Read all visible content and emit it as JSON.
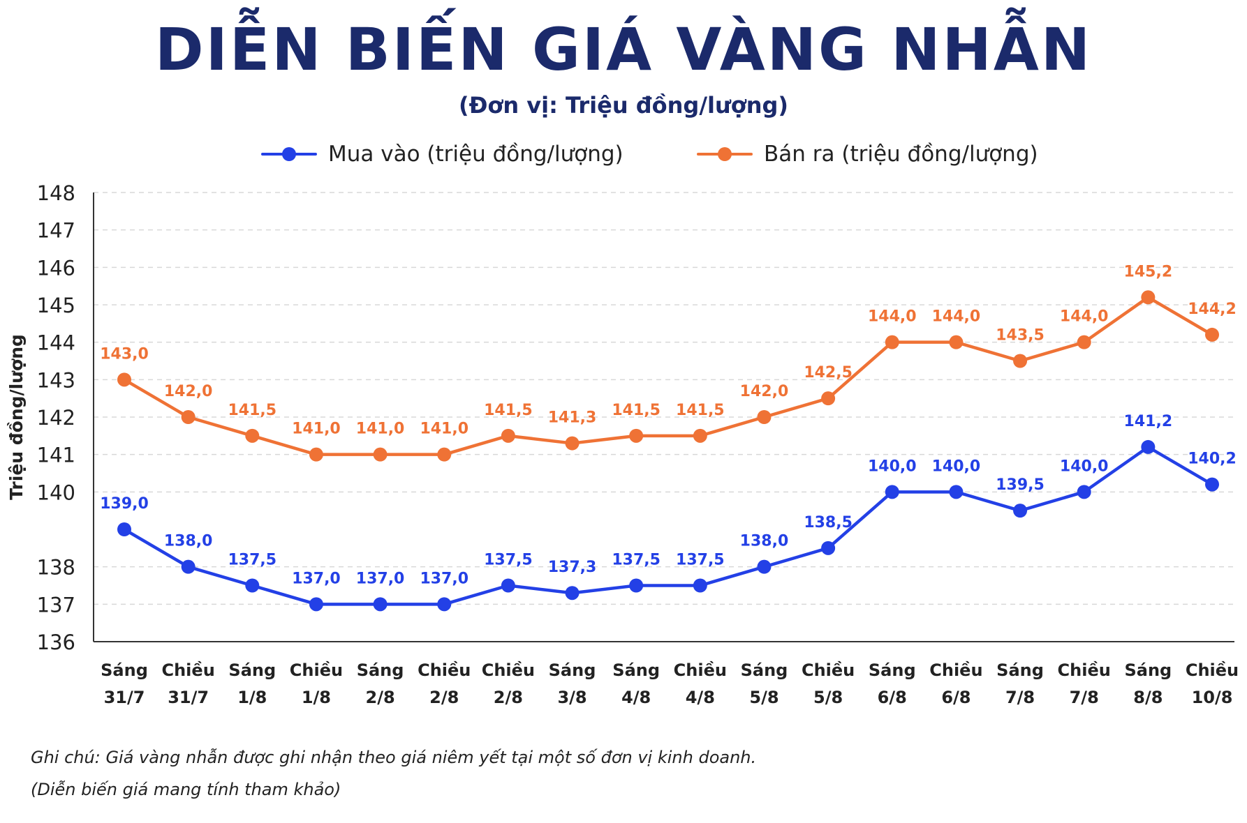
{
  "title": "DIỄN BIẾN GIÁ VÀNG NHẪN",
  "subtitle": "(Đơn vị: Triệu đồng/lượng)",
  "notes": [
    "Ghi chú: Giá vàng nhẫn được ghi nhận theo giá niêm yết tại một số đơn vị kinh doanh.",
    "(Diễn biến giá mang tính tham khảo)"
  ],
  "colors": {
    "buy": "#2340e6",
    "sell": "#ef7235",
    "title": "#1b2a6b"
  },
  "chart_data": {
    "type": "line",
    "ylabel": "Triệu đồng/lượng",
    "xlabel": "",
    "ylim": [
      136,
      148
    ],
    "yticks": [
      136,
      137,
      138,
      140,
      141,
      142,
      143,
      144,
      145,
      146,
      147,
      148
    ],
    "grid": true,
    "legend_position": "top-center",
    "categories": [
      [
        "Sáng",
        "31/7"
      ],
      [
        "Chiều",
        "31/7"
      ],
      [
        "Sáng",
        "1/8"
      ],
      [
        "Chiều",
        "1/8"
      ],
      [
        "Sáng",
        "2/8"
      ],
      [
        "Chiều",
        "2/8"
      ],
      [
        "Chiều",
        "2/8"
      ],
      [
        "Sáng",
        "3/8"
      ],
      [
        "Sáng",
        "4/8"
      ],
      [
        "Chiều",
        "4/8"
      ],
      [
        "Sáng",
        "5/8"
      ],
      [
        "Chiều",
        "5/8"
      ],
      [
        "Sáng",
        "6/8"
      ],
      [
        "Chiều",
        "6/8"
      ],
      [
        "Sáng",
        "7/8"
      ],
      [
        "Chiều",
        "7/8"
      ],
      [
        "Sáng",
        "8/8"
      ],
      [
        "Chiều",
        "10/8"
      ]
    ],
    "series": [
      {
        "name": "Mua vào (triệu đồng/lượng)",
        "key": "buy",
        "values": [
          139.0,
          138.0,
          137.5,
          137.0,
          137.0,
          137.0,
          137.5,
          137.3,
          137.5,
          137.5,
          138.0,
          138.5,
          140.0,
          140.0,
          139.5,
          140.0,
          141.2,
          140.2
        ],
        "labels": [
          "139,0",
          "138,0",
          "137,5",
          "137,0",
          "137,0",
          "137,0",
          "137,5",
          "137,3",
          "137,5",
          "137,5",
          "138,0",
          "138,5",
          "140,0",
          "140,0",
          "139,5",
          "140,0",
          "141,2",
          "140,2"
        ]
      },
      {
        "name": "Bán ra (triệu đồng/lượng)",
        "key": "sell",
        "values": [
          143.0,
          142.0,
          141.5,
          141.0,
          141.0,
          141.0,
          141.5,
          141.3,
          141.5,
          141.5,
          142.0,
          142.5,
          144.0,
          144.0,
          143.5,
          144.0,
          145.2,
          144.2
        ],
        "labels": [
          "143,0",
          "142,0",
          "141,5",
          "141,0",
          "141,0",
          "141,0",
          "141,5",
          "141,3",
          "141,5",
          "141,5",
          "142,0",
          "142,5",
          "144,0",
          "144,0",
          "143,5",
          "144,0",
          "145,2",
          "144,2"
        ]
      }
    ]
  }
}
